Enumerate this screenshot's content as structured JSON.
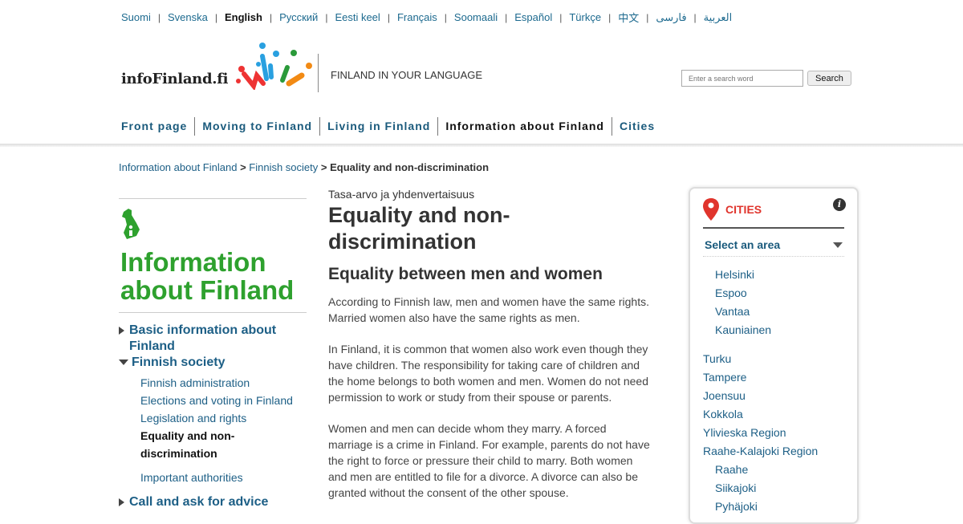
{
  "languages": [
    {
      "label": "Suomi"
    },
    {
      "label": "Svenska"
    },
    {
      "label": "English",
      "current": true
    },
    {
      "label": "Русский"
    },
    {
      "label": "Eesti keel"
    },
    {
      "label": "Français"
    },
    {
      "label": "Soomaali"
    },
    {
      "label": "Español"
    },
    {
      "label": "Türkçe"
    },
    {
      "label": "中文"
    },
    {
      "label": "فارسی"
    },
    {
      "label": "العربية"
    }
  ],
  "header": {
    "logo": "infoFinland.fi",
    "tagline": "FINLAND IN YOUR LANGUAGE",
    "search_placeholder": "Enter a search word",
    "search_button": "Search"
  },
  "nav": [
    {
      "label": "Front page"
    },
    {
      "label": "Moving to Finland"
    },
    {
      "label": "Living in Finland"
    },
    {
      "label": "Information about Finland",
      "active": true
    },
    {
      "label": "Cities"
    }
  ],
  "breadcrumb": {
    "items": [
      "Information about Finland",
      "Finnish society"
    ],
    "sep": ">",
    "current": "Equality and non-discrimination"
  },
  "left": {
    "title": "Information about Finland",
    "items": [
      {
        "label": "Basic information about Finland"
      },
      {
        "label": "Finnish society",
        "children": [
          "Finnish administration",
          "Elections and voting in Finland",
          "Legislation and rights",
          "Equality and non-discrimination",
          "Important authorities"
        ]
      },
      {
        "label": "Call and ask for advice"
      }
    ]
  },
  "main": {
    "kicker": "Tasa-arvo ja yhdenvertaisuus",
    "title": "Equality and non-discrimination",
    "subtitle": "Equality between men and women",
    "paragraphs": [
      "According to Finnish law, men and women have the same rights. Married women also have the same rights as men.",
      "In Finland, it is common that women also work even though they have children. The responsibility for taking care of children and the home belongs to both women and men. Women do not need permission to work or study from their spouse or parents.",
      "Women and men can decide whom they marry. A forced marriage is a crime in Finland. For example, parents do not have the right to force or pressure their child to marry. Both women and men are entitled to file for a divorce. A divorce can also be granted without the consent of the other spouse."
    ]
  },
  "cities": {
    "title": "CITIES",
    "info": "i",
    "select": "Select an area",
    "group1": [
      "Helsinki",
      "Espoo",
      "Vantaa",
      "Kauniainen"
    ],
    "group2": [
      "Turku",
      "Tampere",
      "Joensuu",
      "Kokkola",
      "Ylivieska Region",
      "Raahe-Kalajoki Region"
    ],
    "group3": [
      "Raahe",
      "Siikajoki",
      "Pyhäjoki"
    ]
  },
  "colors": {
    "link": "#1d5f86",
    "green": "#2ea12e",
    "red": "#e0342c"
  }
}
